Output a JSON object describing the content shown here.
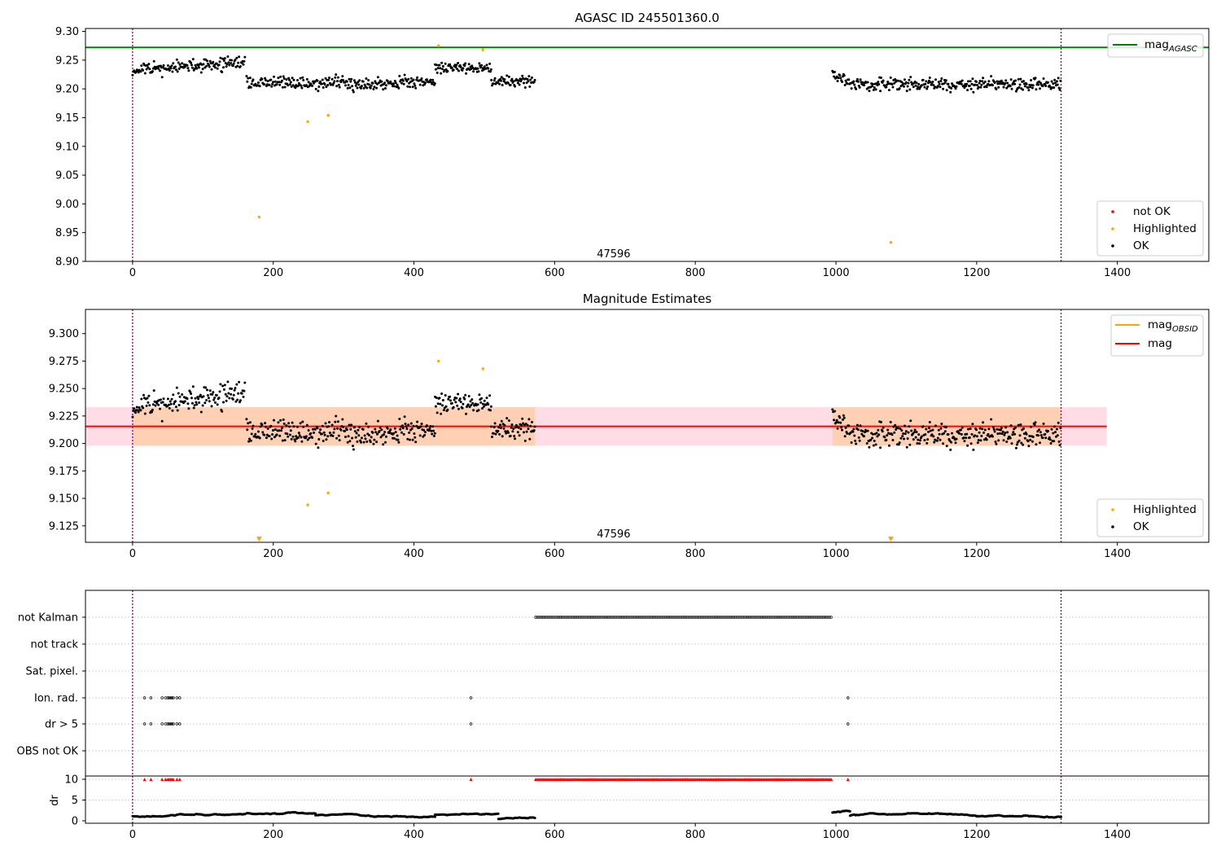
{
  "chart_data": [
    {
      "type": "scatter",
      "title": "AGASC ID 245501360.0",
      "xlim": [
        -67,
        1530
      ],
      "ylim": [
        8.9,
        9.305
      ],
      "x_ticks": [
        0,
        200,
        400,
        600,
        800,
        1000,
        1200,
        1400
      ],
      "y_ticks": [
        8.9,
        8.95,
        9.0,
        9.05,
        9.1,
        9.15,
        9.2,
        9.25,
        9.3
      ],
      "y_tick_labels": [
        "8.90",
        "8.95",
        "9.00",
        "9.05",
        "9.10",
        "9.15",
        "9.20",
        "9.25",
        "9.30"
      ],
      "vlines": [
        0,
        1320
      ],
      "hline": {
        "value": 9.272,
        "color": "#008000"
      },
      "obsid_label": {
        "text": "47596",
        "x": 660,
        "y": 8.914
      },
      "legend_top": [
        {
          "label": "mag",
          "sub": "AGASC",
          "color": "#008000"
        }
      ],
      "legend_bottom": [
        {
          "label": "not OK",
          "color": "#ff0000"
        },
        {
          "label": "Highlighted",
          "color": "#ffa500"
        },
        {
          "label": "OK",
          "color": "#000000"
        }
      ],
      "series": [
        {
          "name": "OK",
          "segments": [
            {
              "x0": 0,
              "x1": 160,
              "y": 9.232,
              "spread": 0.014,
              "slope": 9e-05
            },
            {
              "x0": 162,
              "x1": 370,
              "y": 9.21,
              "spread": 0.016,
              "slope": 0
            },
            {
              "x0": 370,
              "x1": 430,
              "y": 9.212,
              "spread": 0.014,
              "slope": 0
            },
            {
              "x0": 430,
              "x1": 510,
              "y": 9.237,
              "spread": 0.012,
              "slope": 0
            },
            {
              "x0": 510,
              "x1": 572,
              "y": 9.213,
              "spread": 0.013,
              "slope": 0
            },
            {
              "x0": 995,
              "x1": 1020,
              "y": 9.228,
              "spread": 0.012,
              "slope": -0.0008
            },
            {
              "x0": 1020,
              "x1": 1320,
              "y": 9.208,
              "spread": 0.014,
              "slope": 0
            }
          ]
        },
        {
          "name": "Highlighted",
          "points": [
            [
              180,
              8.977
            ],
            [
              249,
              9.143
            ],
            [
              278,
              9.154
            ],
            [
              435,
              9.275
            ],
            [
              498,
              9.268
            ],
            [
              1078,
              8.933
            ]
          ]
        }
      ]
    },
    {
      "type": "scatter",
      "title": "Magnitude Estimates",
      "xlim": [
        -67,
        1530
      ],
      "ylim": [
        9.11,
        9.322
      ],
      "x_ticks": [
        0,
        200,
        400,
        600,
        800,
        1000,
        1200,
        1400
      ],
      "y_ticks": [
        9.125,
        9.15,
        9.175,
        9.2,
        9.225,
        9.25,
        9.275,
        9.3
      ],
      "y_tick_labels": [
        "9.125",
        "9.150",
        "9.175",
        "9.200",
        "9.225",
        "9.250",
        "9.275",
        "9.300"
      ],
      "vlines": [
        0,
        1320
      ],
      "mag_line": {
        "value": 9.2155,
        "x0": -67,
        "x1": 1385,
        "color": "#ff0000"
      },
      "mag_band": {
        "low": 9.198,
        "high": 9.233,
        "x0": -67,
        "x1": 1385,
        "color": "#ffdde6"
      },
      "obsid_band": [
        {
          "low": 9.198,
          "high": 9.233,
          "x0": 0,
          "x1": 572
        },
        {
          "low": 9.198,
          "high": 9.233,
          "x0": 995,
          "x1": 1320
        }
      ],
      "obsid_label": {
        "text": "47596",
        "x": 660,
        "y": 9.118
      },
      "legend_top": [
        {
          "label": "mag",
          "sub": "OBSID",
          "color": "#ffa500"
        },
        {
          "label": "mag",
          "sub": "",
          "color": "#ff0000"
        }
      ],
      "legend_bottom": [
        {
          "label": "Highlighted",
          "color": "#ffa500"
        },
        {
          "label": "OK",
          "color": "#000000"
        }
      ],
      "series": [
        {
          "name": "OK",
          "segments": [
            {
              "x0": 0,
              "x1": 160,
              "y": 9.232,
              "spread": 0.014,
              "slope": 9e-05
            },
            {
              "x0": 162,
              "x1": 370,
              "y": 9.21,
              "spread": 0.016,
              "slope": 0
            },
            {
              "x0": 370,
              "x1": 430,
              "y": 9.212,
              "spread": 0.014,
              "slope": 0
            },
            {
              "x0": 430,
              "x1": 510,
              "y": 9.237,
              "spread": 0.012,
              "slope": 0
            },
            {
              "x0": 510,
              "x1": 572,
              "y": 9.213,
              "spread": 0.013,
              "slope": 0
            },
            {
              "x0": 995,
              "x1": 1020,
              "y": 9.228,
              "spread": 0.012,
              "slope": -0.0008
            },
            {
              "x0": 1020,
              "x1": 1320,
              "y": 9.208,
              "spread": 0.014,
              "slope": 0
            }
          ]
        },
        {
          "name": "Highlighted",
          "points": [
            [
              249,
              9.144
            ],
            [
              278,
              9.155
            ],
            [
              435,
              9.275
            ],
            [
              498,
              9.268
            ]
          ]
        },
        {
          "name": "Highlighted (below range)",
          "points": [
            [
              180,
              9.11
            ],
            [
              1078,
              9.11
            ]
          ]
        }
      ]
    },
    {
      "type": "scatter",
      "title": "",
      "xlim": [
        -67,
        1530
      ],
      "x_ticks": [
        0,
        200,
        400,
        600,
        800,
        1000,
        1200,
        1400
      ],
      "vlines": [
        0,
        1320
      ],
      "flag_rows": [
        "not Kalman",
        "not track",
        "Sat. pixel.",
        "Ion. rad.",
        "dr > 5",
        "OBS not OK"
      ],
      "flags": {
        "not Kalman": [
          {
            "x0": 573,
            "x1": 995,
            "step": 2.2
          }
        ],
        "Ion. rad.": [
          {
            "points": [
              17,
              26,
              42,
              47,
              50,
              52,
              54,
              56,
              58,
              63,
              67,
              481,
              1017
            ]
          }
        ],
        "dr > 5": [
          {
            "points": [
              17,
              26,
              42,
              47,
              50,
              52,
              54,
              56,
              58,
              63,
              67,
              481,
              1017
            ]
          }
        ]
      },
      "dr_ylim": [
        0,
        10
      ],
      "dr_ticks": [
        0,
        5,
        10
      ],
      "ylabel": "dr",
      "dr_capped_markers": {
        "color": "#ff0000",
        "points": [
          17,
          26,
          42,
          47,
          50,
          52,
          54,
          56,
          58,
          63,
          67,
          481,
          1017
        ],
        "ranges": [
          {
            "x0": 573,
            "x1": 995,
            "step": 2.2
          }
        ]
      },
      "dr_segments": [
        {
          "x0": 0,
          "x1": 160,
          "y": 1.2,
          "spread": 0.4
        },
        {
          "x0": 162,
          "x1": 260,
          "y": 1.8,
          "spread": 0.5
        },
        {
          "x0": 260,
          "x1": 430,
          "y": 1.3,
          "spread": 0.5
        },
        {
          "x0": 430,
          "x1": 520,
          "y": 1.5,
          "spread": 0.6
        },
        {
          "x0": 520,
          "x1": 572,
          "y": 0.5,
          "spread": 0.3
        },
        {
          "x0": 995,
          "x1": 1020,
          "y": 2.0,
          "spread": 0.4
        },
        {
          "x0": 1020,
          "x1": 1320,
          "y": 1.2,
          "spread": 0.6
        }
      ]
    }
  ]
}
